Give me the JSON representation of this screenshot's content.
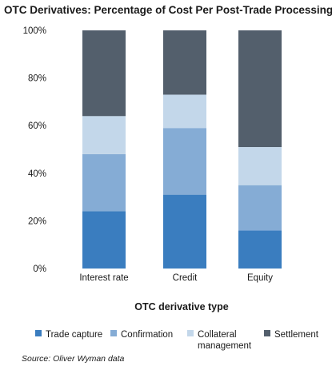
{
  "chart_data": {
    "type": "bar",
    "stacked": true,
    "title": "OTC Derivatives: Percentage of Cost Per Post-Trade Processing Step",
    "xlabel": "OTC derivative type",
    "ylabel": "",
    "categories": [
      "Interest rate",
      "Credit",
      "Equity"
    ],
    "ylim": [
      0,
      100
    ],
    "yticks": [
      "0%",
      "20%",
      "40%",
      "60%",
      "80%",
      "100%"
    ],
    "ytick_values": [
      0,
      20,
      40,
      60,
      80,
      100
    ],
    "grid": false,
    "legend_position": "bottom",
    "series": [
      {
        "name": "Trade capture",
        "color": "#3a7dbf",
        "values": [
          24,
          31,
          16
        ]
      },
      {
        "name": "Confirmation",
        "color": "#85acd5",
        "values": [
          24,
          28,
          19
        ]
      },
      {
        "name": "Collateral management",
        "legend_lines": [
          "Collateral",
          "management"
        ],
        "color": "#c3d7ea",
        "values": [
          16,
          14,
          16
        ]
      },
      {
        "name": "Settlement",
        "color": "#535f6c",
        "values": [
          36,
          27,
          49
        ]
      }
    ],
    "source": "Source: Oliver Wyman data"
  }
}
